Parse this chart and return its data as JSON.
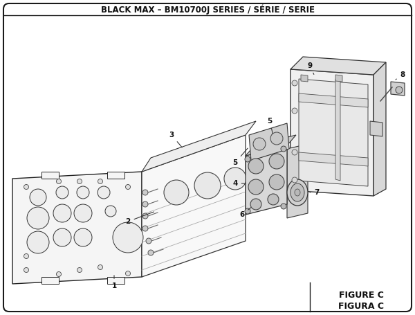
{
  "title": "BLACK MAX – BM10700J SERIES / SÉRIE / SERIE",
  "figure_label": "FIGURE C",
  "figura_label": "FIGURA C",
  "bg_color": "#ffffff",
  "border_color": "#1a1a1a",
  "text_color": "#111111",
  "title_fontsize": 8.5,
  "label_fontsize": 7.5,
  "figure_label_fontsize": 9
}
